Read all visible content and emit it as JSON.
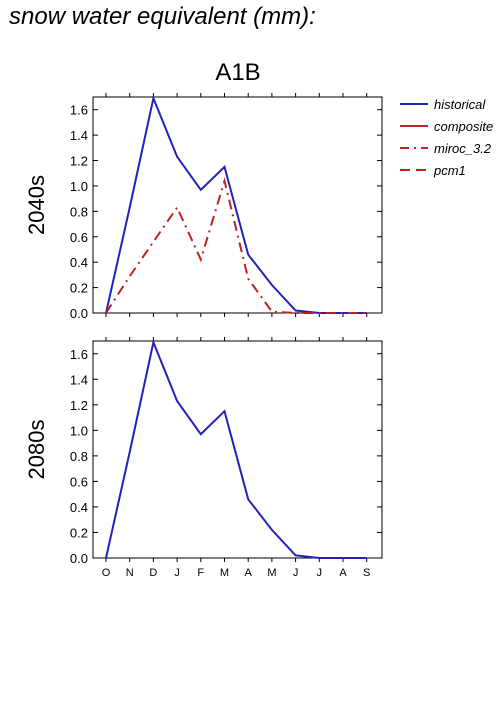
{
  "page_title": "snow water equivalent (mm):",
  "chart_data": {
    "type": "line",
    "title": "A1B",
    "categories": [
      "O",
      "N",
      "D",
      "J",
      "F",
      "M",
      "A",
      "M",
      "J",
      "J",
      "A",
      "S"
    ],
    "ylim": [
      0,
      1.7
    ],
    "yticks": [
      "0.0",
      "0.2",
      "0.4",
      "0.6",
      "0.8",
      "1.0",
      "1.2",
      "1.4",
      "1.6"
    ],
    "legend_position": "right",
    "legend": [
      {
        "name": "historical",
        "color": "#2222bb",
        "dash": "solid"
      },
      {
        "name": "composite",
        "color": "#bb2222",
        "dash": "solid"
      },
      {
        "name": "miroc_3.2",
        "color": "#bb2222",
        "dash": "dashdot"
      },
      {
        "name": "pcm1",
        "color": "#bb2222",
        "dash": "dashed"
      }
    ],
    "panels": [
      {
        "ylabel": "2040s",
        "series": [
          {
            "name": "historical",
            "color": "#2222bb",
            "dash": "solid",
            "values": [
              0.0,
              0.83,
              1.69,
              1.23,
              0.97,
              1.15,
              0.46,
              0.22,
              0.02,
              0.0,
              0.0,
              0.0
            ]
          },
          {
            "name": "miroc_3.2",
            "color": "#bb2222",
            "dash": "dashdot",
            "values": [
              0.0,
              0.29,
              0.56,
              0.83,
              0.42,
              1.04,
              0.27,
              0.01,
              0.0,
              0.0,
              0.0,
              0.0
            ]
          }
        ]
      },
      {
        "ylabel": "2080s",
        "series": [
          {
            "name": "historical",
            "color": "#2222bb",
            "dash": "solid",
            "values": [
              0.0,
              0.83,
              1.69,
              1.23,
              0.97,
              1.15,
              0.46,
              0.22,
              0.02,
              0.0,
              0.0,
              0.0
            ]
          }
        ]
      }
    ]
  }
}
